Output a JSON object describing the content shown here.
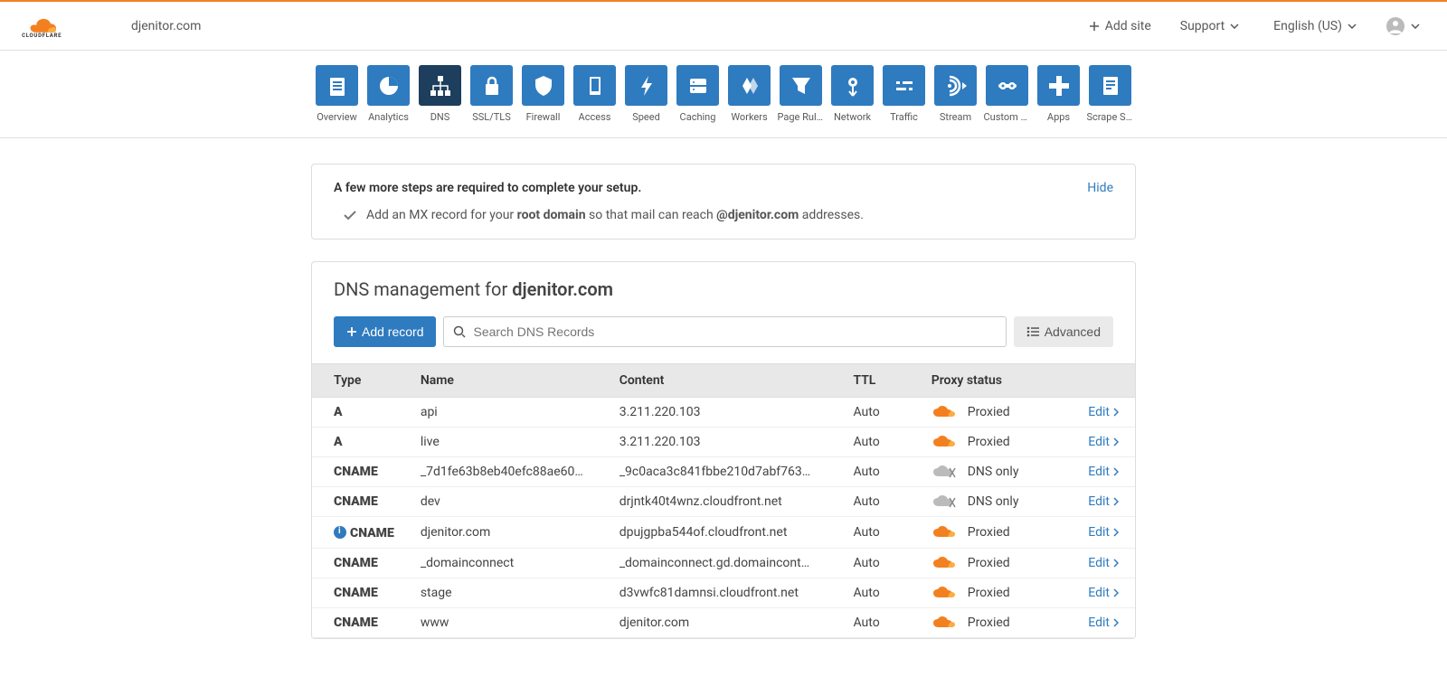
{
  "header": {
    "site_name": "djenitor.com",
    "add_site": "Add site",
    "support": "Support",
    "language": "English (US)"
  },
  "nav": [
    {
      "label": "Overview",
      "icon": "overview"
    },
    {
      "label": "Analytics",
      "icon": "analytics"
    },
    {
      "label": "DNS",
      "icon": "dns",
      "active": true
    },
    {
      "label": "SSL/TLS",
      "icon": "ssl"
    },
    {
      "label": "Firewall",
      "icon": "firewall"
    },
    {
      "label": "Access",
      "icon": "access"
    },
    {
      "label": "Speed",
      "icon": "speed"
    },
    {
      "label": "Caching",
      "icon": "caching"
    },
    {
      "label": "Workers",
      "icon": "workers"
    },
    {
      "label": "Page Rules",
      "icon": "pagerules"
    },
    {
      "label": "Network",
      "icon": "network"
    },
    {
      "label": "Traffic",
      "icon": "traffic"
    },
    {
      "label": "Stream",
      "icon": "stream"
    },
    {
      "label": "Custom P…",
      "icon": "custom"
    },
    {
      "label": "Apps",
      "icon": "apps"
    },
    {
      "label": "Scrape Sh…",
      "icon": "scrape"
    }
  ],
  "notice": {
    "title": "A few more steps are required to complete your setup.",
    "hide": "Hide",
    "msg_prefix": "Add an MX record for your ",
    "msg_bold1": "root domain",
    "msg_mid": " so that mail can reach ",
    "msg_bold2": "@djenitor.com",
    "msg_suffix": " addresses."
  },
  "dns": {
    "title_prefix": "DNS management for ",
    "title_domain": "djenitor.com",
    "add_record": "Add record",
    "search_placeholder": "Search DNS Records",
    "advanced": "Advanced",
    "edit_label": "Edit",
    "columns": {
      "type": "Type",
      "name": "Name",
      "content": "Content",
      "ttl": "TTL",
      "proxy": "Proxy status"
    },
    "records": [
      {
        "type": "A",
        "name": "api",
        "content": "3.211.220.103",
        "ttl": "Auto",
        "proxy": "Proxied",
        "proxied": true,
        "info": false
      },
      {
        "type": "A",
        "name": "live",
        "content": "3.211.220.103",
        "ttl": "Auto",
        "proxy": "Proxied",
        "proxied": true,
        "info": false
      },
      {
        "type": "CNAME",
        "name": "_7d1fe63b8eb40efc88ae60…",
        "content": "_9c0aca3c841fbbe210d7abf763…",
        "ttl": "Auto",
        "proxy": "DNS only",
        "proxied": false,
        "info": false
      },
      {
        "type": "CNAME",
        "name": "dev",
        "content": "drjntk40t4wnz.cloudfront.net",
        "ttl": "Auto",
        "proxy": "DNS only",
        "proxied": false,
        "info": false
      },
      {
        "type": "CNAME",
        "name": "djenitor.com",
        "content": "dpujgpba544of.cloudfront.net",
        "ttl": "Auto",
        "proxy": "Proxied",
        "proxied": true,
        "info": true
      },
      {
        "type": "CNAME",
        "name": "_domainconnect",
        "content": "_domainconnect.gd.domaincont…",
        "ttl": "Auto",
        "proxy": "Proxied",
        "proxied": true,
        "info": false
      },
      {
        "type": "CNAME",
        "name": "stage",
        "content": "d3vwfc81damnsi.cloudfront.net",
        "ttl": "Auto",
        "proxy": "Proxied",
        "proxied": true,
        "info": false
      },
      {
        "type": "CNAME",
        "name": "www",
        "content": "djenitor.com",
        "ttl": "Auto",
        "proxy": "Proxied",
        "proxied": true,
        "info": false
      }
    ]
  },
  "colors": {
    "orange": "#f38020",
    "blue": "#2f7bbf",
    "dark_blue": "#1d3e5c",
    "gray_cloud": "#999999"
  }
}
